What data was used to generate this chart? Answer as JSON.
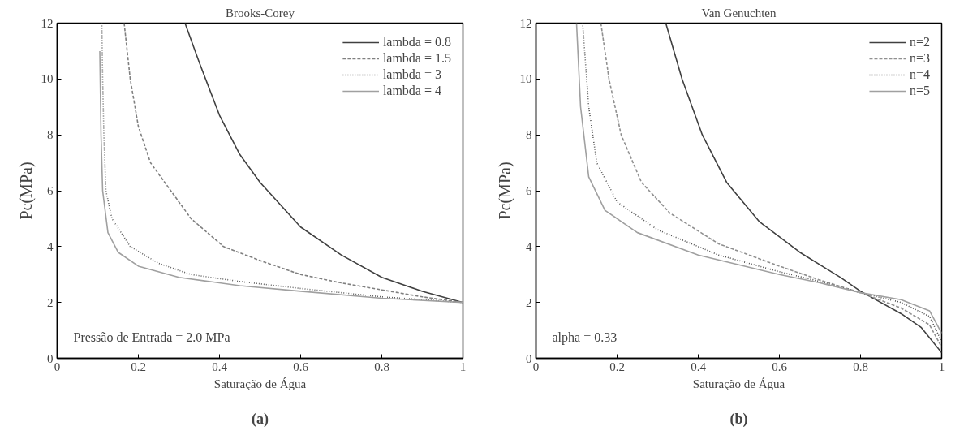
{
  "chart_data": [
    {
      "type": "line",
      "title": "Brooks-Corey",
      "xlabel": "Saturação de Água",
      "ylabel": "Pc(MPa)",
      "xlim": [
        0,
        1
      ],
      "ylim": [
        0,
        12
      ],
      "xticks": [
        0,
        0.2,
        0.4,
        0.6,
        0.8,
        1
      ],
      "yticks": [
        0,
        2,
        4,
        6,
        8,
        10,
        12
      ],
      "grid": false,
      "legend": "top right",
      "annotations": [
        "Pressão de Entrada  = 2.0 MPa",
        "(a)"
      ],
      "series": [
        {
          "name": "lambda = 0.8",
          "color": "#404040",
          "line_style": "solid",
          "x": [
            0.315,
            0.35,
            0.4,
            0.45,
            0.5,
            0.55,
            0.6,
            0.7,
            0.8,
            0.9,
            1.0
          ],
          "values": [
            12,
            10.6,
            8.7,
            7.3,
            6.3,
            5.5,
            4.7,
            3.7,
            2.9,
            2.4,
            2.0
          ]
        },
        {
          "name": "lambda = 1.5",
          "color": "#808080",
          "line_style": "dashed",
          "x": [
            0.165,
            0.18,
            0.2,
            0.23,
            0.28,
            0.33,
            0.41,
            0.5,
            0.6,
            0.7,
            0.8,
            0.9,
            1.0
          ],
          "values": [
            12,
            10,
            8.3,
            7,
            6,
            5,
            4,
            3.5,
            3.0,
            2.7,
            2.45,
            2.2,
            2.0
          ]
        },
        {
          "name": "lambda = 3",
          "color": "#606060",
          "line_style": "dotted",
          "x": [
            0.11,
            0.112,
            0.115,
            0.12,
            0.135,
            0.18,
            0.25,
            0.33,
            0.45,
            0.6,
            0.8,
            1.0
          ],
          "values": [
            12,
            10,
            8,
            6,
            5,
            4,
            3.4,
            3.0,
            2.75,
            2.5,
            2.2,
            2.0
          ]
        },
        {
          "name": "lambda = 4",
          "color": "#a0a0a0",
          "line_style": "solid",
          "x": [
            0.105,
            0.108,
            0.112,
            0.125,
            0.15,
            0.2,
            0.3,
            0.45,
            0.6,
            0.8,
            1.0
          ],
          "values": [
            11,
            8,
            6,
            4.5,
            3.8,
            3.3,
            2.9,
            2.6,
            2.4,
            2.15,
            2.0
          ]
        }
      ]
    },
    {
      "type": "line",
      "title": "Van Genuchten",
      "xlabel": "Saturação de Água",
      "ylabel": "Pc(MPa)",
      "xlim": [
        0,
        1
      ],
      "ylim": [
        0,
        12
      ],
      "xticks": [
        0,
        0.2,
        0.4,
        0.6,
        0.8,
        1
      ],
      "yticks": [
        0,
        2,
        4,
        6,
        8,
        10,
        12
      ],
      "grid": false,
      "legend": "top right",
      "annotations": [
        "alpha = 0.33",
        "(b)"
      ],
      "series": [
        {
          "name": "n=2",
          "color": "#404040",
          "line_style": "solid",
          "x": [
            0.32,
            0.36,
            0.41,
            0.47,
            0.55,
            0.65,
            0.75,
            0.8,
            0.9,
            0.95,
            1.0
          ],
          "values": [
            12,
            10,
            8,
            6.3,
            4.9,
            3.8,
            2.9,
            2.4,
            1.6,
            1.1,
            0.2
          ]
        },
        {
          "name": "n=3",
          "color": "#909090",
          "line_style": "dashed",
          "x": [
            0.16,
            0.18,
            0.21,
            0.26,
            0.33,
            0.45,
            0.6,
            0.7,
            0.8,
            0.9,
            0.97,
            1.0
          ],
          "values": [
            12,
            10,
            8,
            6.3,
            5.2,
            4.1,
            3.3,
            2.8,
            2.35,
            1.8,
            1.2,
            0.4
          ]
        },
        {
          "name": "n=4",
          "color": "#505050",
          "line_style": "dotted",
          "x": [
            0.115,
            0.13,
            0.15,
            0.2,
            0.3,
            0.45,
            0.6,
            0.7,
            0.8,
            0.9,
            0.97,
            1.0
          ],
          "values": [
            12,
            9,
            7,
            5.6,
            4.6,
            3.7,
            3.1,
            2.75,
            2.35,
            2.0,
            1.5,
            0.6
          ]
        },
        {
          "name": "n=5",
          "color": "#a0a0a0",
          "line_style": "solid",
          "x": [
            0.1,
            0.11,
            0.13,
            0.17,
            0.25,
            0.4,
            0.6,
            0.7,
            0.8,
            0.9,
            0.97,
            1.0
          ],
          "values": [
            12,
            9,
            6.5,
            5.3,
            4.5,
            3.7,
            3.0,
            2.7,
            2.35,
            2.1,
            1.7,
            0.9
          ]
        }
      ]
    }
  ]
}
